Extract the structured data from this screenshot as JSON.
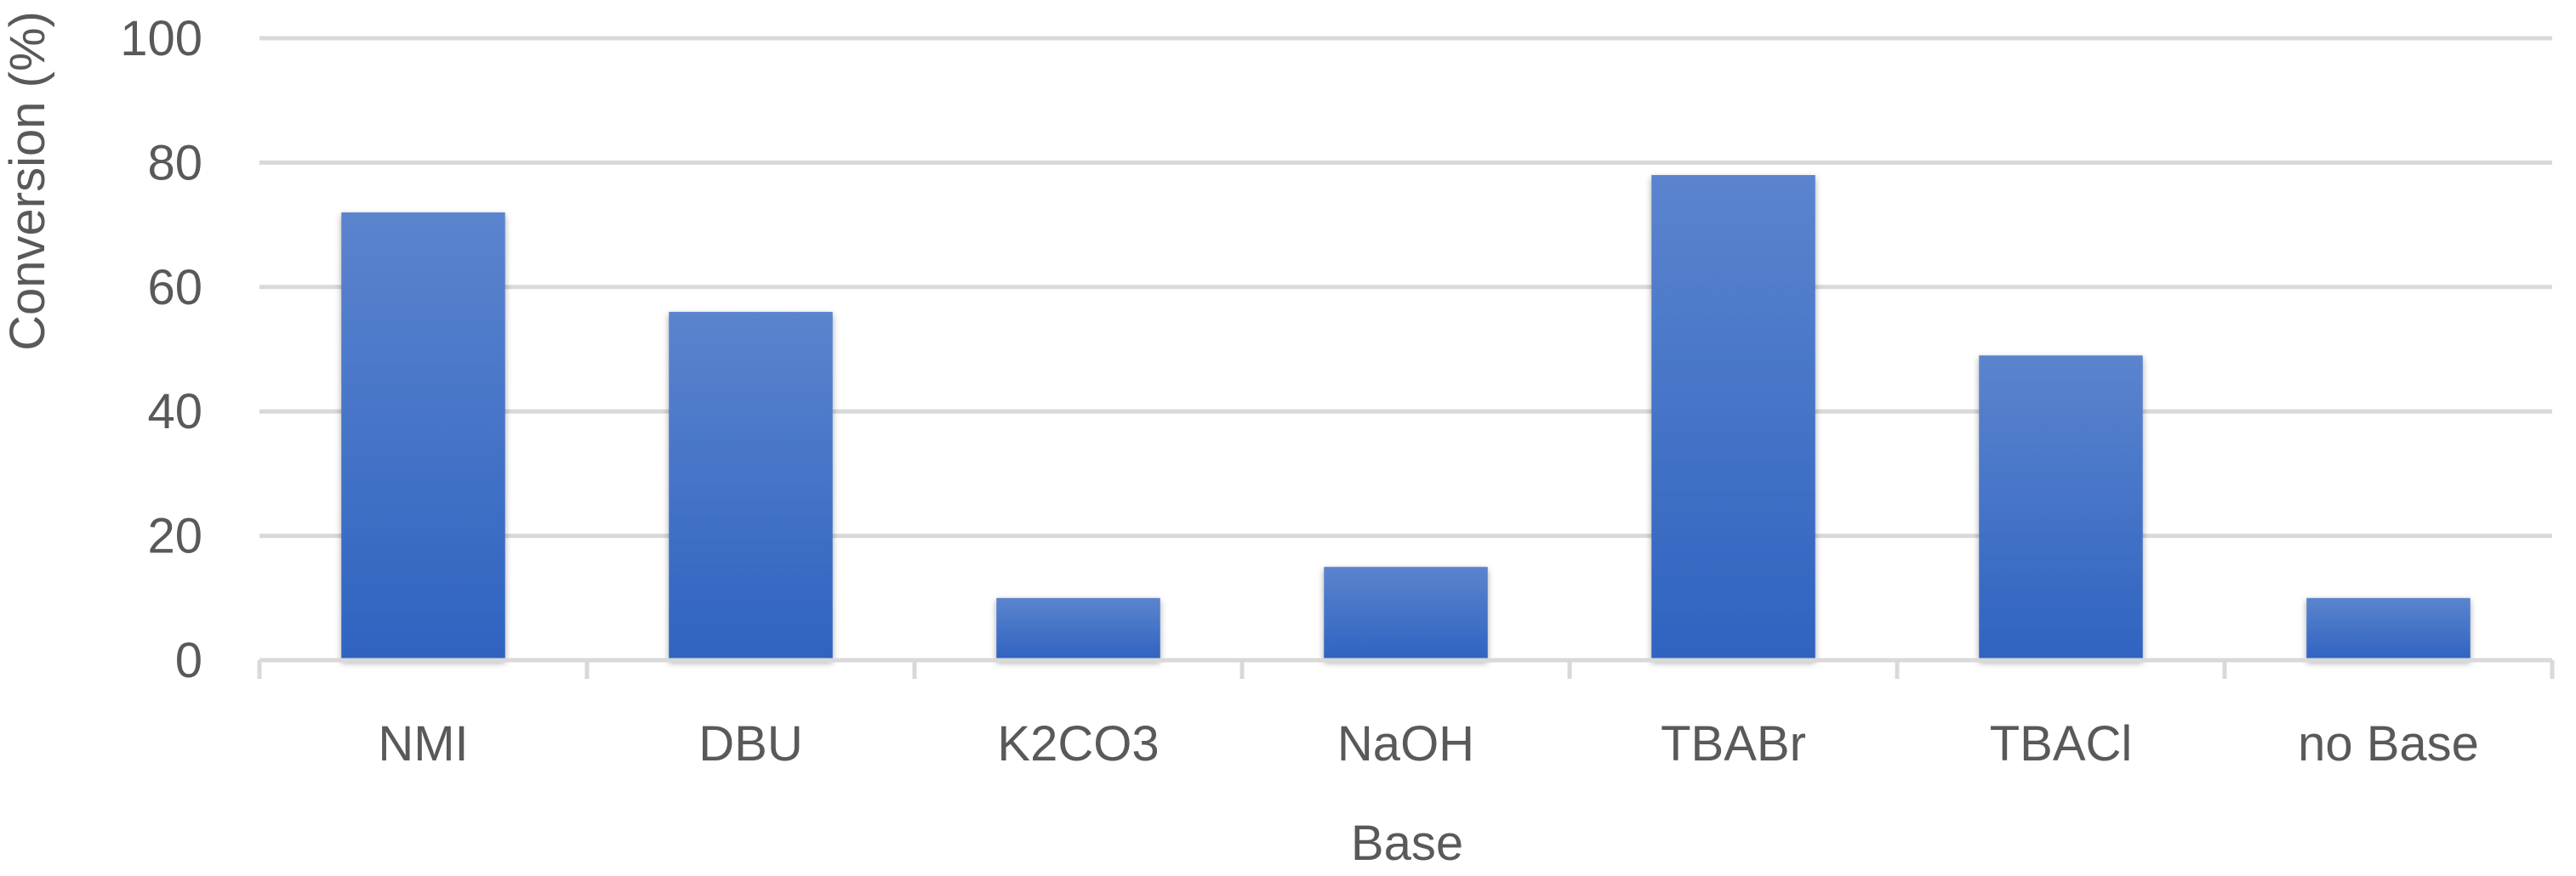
{
  "chart_data": {
    "type": "bar",
    "title": "",
    "xlabel": "Base",
    "ylabel": "Conversion (%)",
    "categories": [
      "NMI",
      "DBU",
      "K2CO3",
      "NaOH",
      "TBABr",
      "TBACl",
      "no Base"
    ],
    "series": [
      {
        "values": [
          72,
          56,
          10,
          15,
          78,
          49,
          10
        ]
      }
    ],
    "ylim": [
      0,
      100
    ],
    "yticks": [
      0,
      20,
      40,
      60,
      80,
      100
    ],
    "grid": true,
    "legend": "none",
    "colors": {
      "bar_top": "#5B84CE",
      "bar_bottom": "#2F63C0",
      "grid": "#D9D9D9",
      "axis": "#D9D9D9",
      "text": "#595959"
    }
  }
}
